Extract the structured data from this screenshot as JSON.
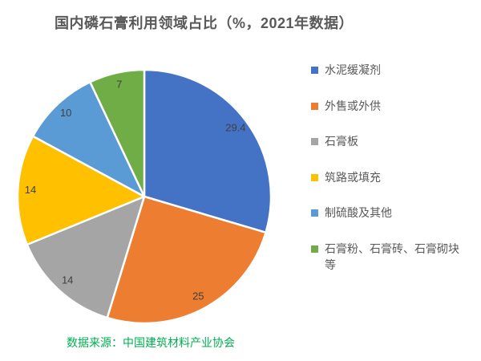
{
  "title": "国内磷石膏利用领域占比（%，2021年数据）",
  "source_note": "数据来源：中国建筑材料产业协会",
  "chart_data": {
    "type": "pie",
    "title": "国内磷石膏利用领域占比（%，2021年数据）",
    "unit": "%",
    "year": "2021",
    "categories": [
      "水泥缓凝剂",
      "外售或外供",
      "石膏板",
      "筑路或填充",
      "制硫酸及其他",
      "石膏粉、石膏砖、石膏砌块等"
    ],
    "values": [
      29.4,
      25,
      14,
      14,
      10,
      7
    ],
    "data_labels": [
      "29.4",
      "25",
      "14",
      "14",
      "10",
      "7"
    ],
    "colors": [
      "#4472C4",
      "#ED7D31",
      "#A5A5A5",
      "#FFC000",
      "#5B9BD5",
      "#70AD47"
    ],
    "start_angle_deg": 0,
    "direction": "clockwise",
    "legend_position": "right",
    "slice_gap_color": "#FFFFFF",
    "label_color": "#404040",
    "legend_text_color": "#595959",
    "title_color": "#595959",
    "source_color": "#00B050"
  }
}
